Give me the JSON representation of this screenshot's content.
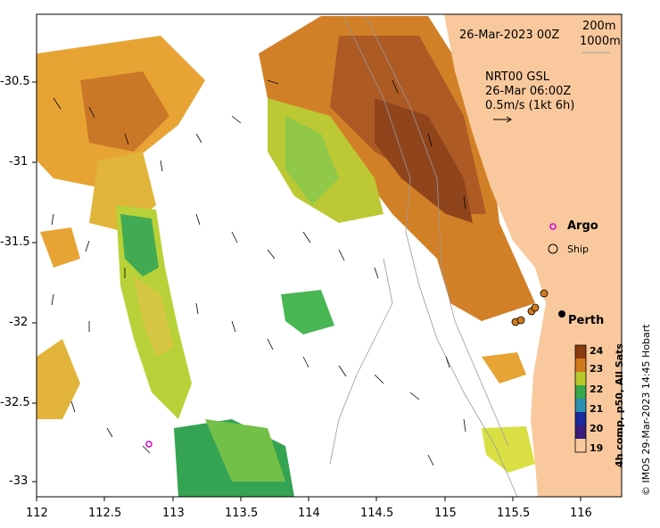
{
  "map": {
    "date_label": "26-Mar-2023 00Z",
    "contour_labels": [
      "200m",
      "1000m"
    ],
    "current_title": "NRT00 GSL",
    "current_time": "26-Mar 06:00Z",
    "current_scale": "0.5m/s (1kt 6h)",
    "legend": {
      "argo": "Argo",
      "ship": "Ship"
    },
    "city": "Perth",
    "x_ticks": [
      "112",
      "112.5",
      "113",
      "113.5",
      "114",
      "114.5",
      "115",
      "115.5",
      "116"
    ],
    "y_ticks": [
      "-30.5",
      "-31",
      "-31.5",
      "-32",
      "-32.5",
      "-33"
    ],
    "colorbar": {
      "title": "4h comp, p50, All Sats",
      "ticks": [
        "24",
        "23",
        "22",
        "21",
        "20",
        "19"
      ]
    },
    "credit": "© IMOS 29-Mar-2023 14:45 Hobart",
    "colors": {
      "land": "#f9c99d",
      "warm": "#8b3a10",
      "cool": "#1a9a48"
    }
  }
}
